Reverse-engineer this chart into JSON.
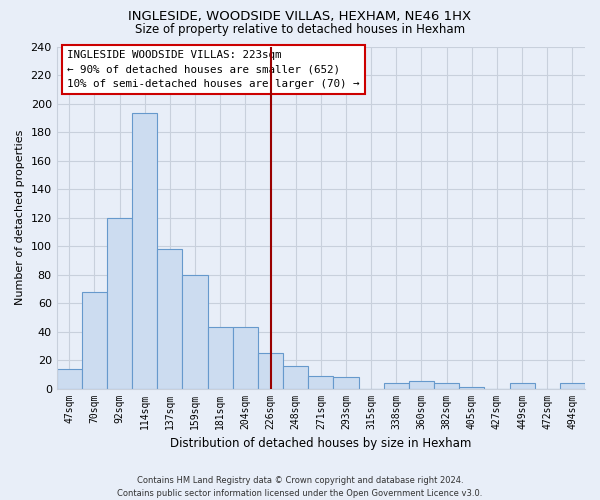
{
  "title": "INGLESIDE, WOODSIDE VILLAS, HEXHAM, NE46 1HX",
  "subtitle": "Size of property relative to detached houses in Hexham",
  "xlabel": "Distribution of detached houses by size in Hexham",
  "ylabel": "Number of detached properties",
  "bar_labels": [
    "47sqm",
    "70sqm",
    "92sqm",
    "114sqm",
    "137sqm",
    "159sqm",
    "181sqm",
    "204sqm",
    "226sqm",
    "248sqm",
    "271sqm",
    "293sqm",
    "315sqm",
    "338sqm",
    "360sqm",
    "382sqm",
    "405sqm",
    "427sqm",
    "449sqm",
    "472sqm",
    "494sqm"
  ],
  "bar_values": [
    14,
    68,
    120,
    193,
    98,
    80,
    43,
    43,
    25,
    16,
    9,
    8,
    0,
    4,
    5,
    4,
    1,
    0,
    4,
    0,
    4
  ],
  "bar_color": "#ccdcf0",
  "bar_edge_color": "#6699cc",
  "vline_x_index": 8,
  "vline_color": "#990000",
  "ylim": [
    0,
    240
  ],
  "yticks": [
    0,
    20,
    40,
    60,
    80,
    100,
    120,
    140,
    160,
    180,
    200,
    220,
    240
  ],
  "legend_title": "INGLESIDE WOODSIDE VILLAS: 223sqm",
  "legend_line1": "← 90% of detached houses are smaller (652)",
  "legend_line2": "10% of semi-detached houses are larger (70) →",
  "legend_box_color": "#ffffff",
  "legend_box_edge_color": "#cc0000",
  "background_color": "#e8eef8",
  "plot_bg_color": "#e8eef8",
  "grid_color": "#c8d0dc",
  "footer_line1": "Contains HM Land Registry data © Crown copyright and database right 2024.",
  "footer_line2": "Contains public sector information licensed under the Open Government Licence v3.0."
}
